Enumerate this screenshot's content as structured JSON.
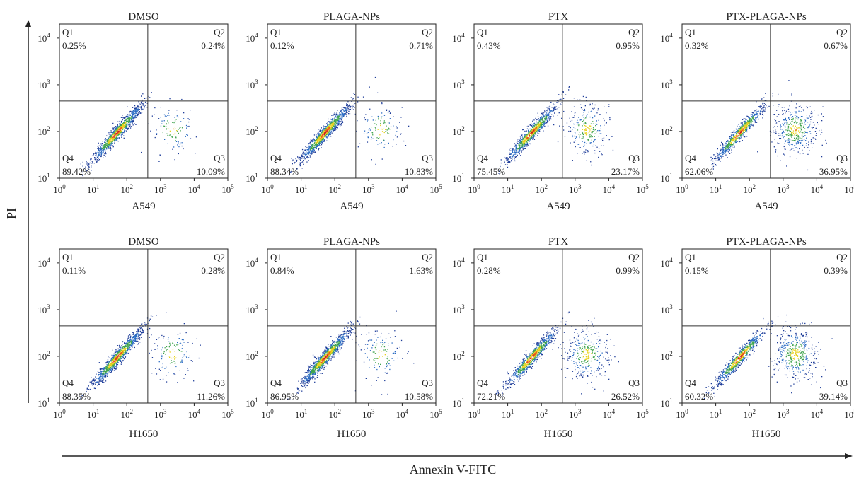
{
  "figure": {
    "y_axis_label": "PI",
    "x_axis_label": "Annexin V-FITC"
  },
  "chart_data": {
    "type": "scatter",
    "scale": "log",
    "xlim": [
      1,
      100000
    ],
    "ylim": [
      10,
      20000
    ],
    "x_tick_labels": [
      "10",
      "10",
      "10",
      "10",
      "10",
      "10"
    ],
    "x_tick_exponents": [
      "0",
      "1",
      "2",
      "3",
      "4",
      "5"
    ],
    "y_tick_labels": [
      "10",
      "10",
      "10",
      "10"
    ],
    "y_tick_exponents": [
      "1",
      "2",
      "3",
      "4"
    ],
    "quadrant_labels": [
      "Q1",
      "Q2",
      "Q3",
      "Q4"
    ],
    "density_colors": [
      "#1f3d99",
      "#2b6cc4",
      "#3fa34d",
      "#e8d21a",
      "#e85a1b",
      "#c81e1e"
    ],
    "panels": [
      {
        "title": "DMSO",
        "cell_line": "A549",
        "q1": "0.25%",
        "q2": "0.24%",
        "q3": "10.09%",
        "q4": "89.42%"
      },
      {
        "title": "PLAGA-NPs",
        "cell_line": "A549",
        "q1": "0.12%",
        "q2": "0.71%",
        "q3": "10.83%",
        "q4": "88.34%"
      },
      {
        "title": "PTX",
        "cell_line": "A549",
        "q1": "0.43%",
        "q2": "0.95%",
        "q3": "23.17%",
        "q4": "75.45%"
      },
      {
        "title": "PTX-PLAGA-NPs",
        "cell_line": "A549",
        "q1": "0.32%",
        "q2": "0.67%",
        "q3": "36.95%",
        "q4": "62.06%"
      },
      {
        "title": "DMSO",
        "cell_line": "H1650",
        "q1": "0.11%",
        "q2": "0.28%",
        "q3": "11.26%",
        "q4": "88.35%"
      },
      {
        "title": "PLAGA-NPs",
        "cell_line": "H1650",
        "q1": "0.84%",
        "q2": "1.63%",
        "q3": "10.58%",
        "q4": "86.95%"
      },
      {
        "title": "PTX",
        "cell_line": "H1650",
        "q1": "0.28%",
        "q2": "0.99%",
        "q3": "26.52%",
        "q4": "72.21%"
      },
      {
        "title": "PTX-PLAGA-NPs",
        "cell_line": "H1650",
        "q1": "0.15%",
        "q2": "0.39%",
        "q3": "39.14%",
        "q4": "60.32%"
      }
    ]
  }
}
